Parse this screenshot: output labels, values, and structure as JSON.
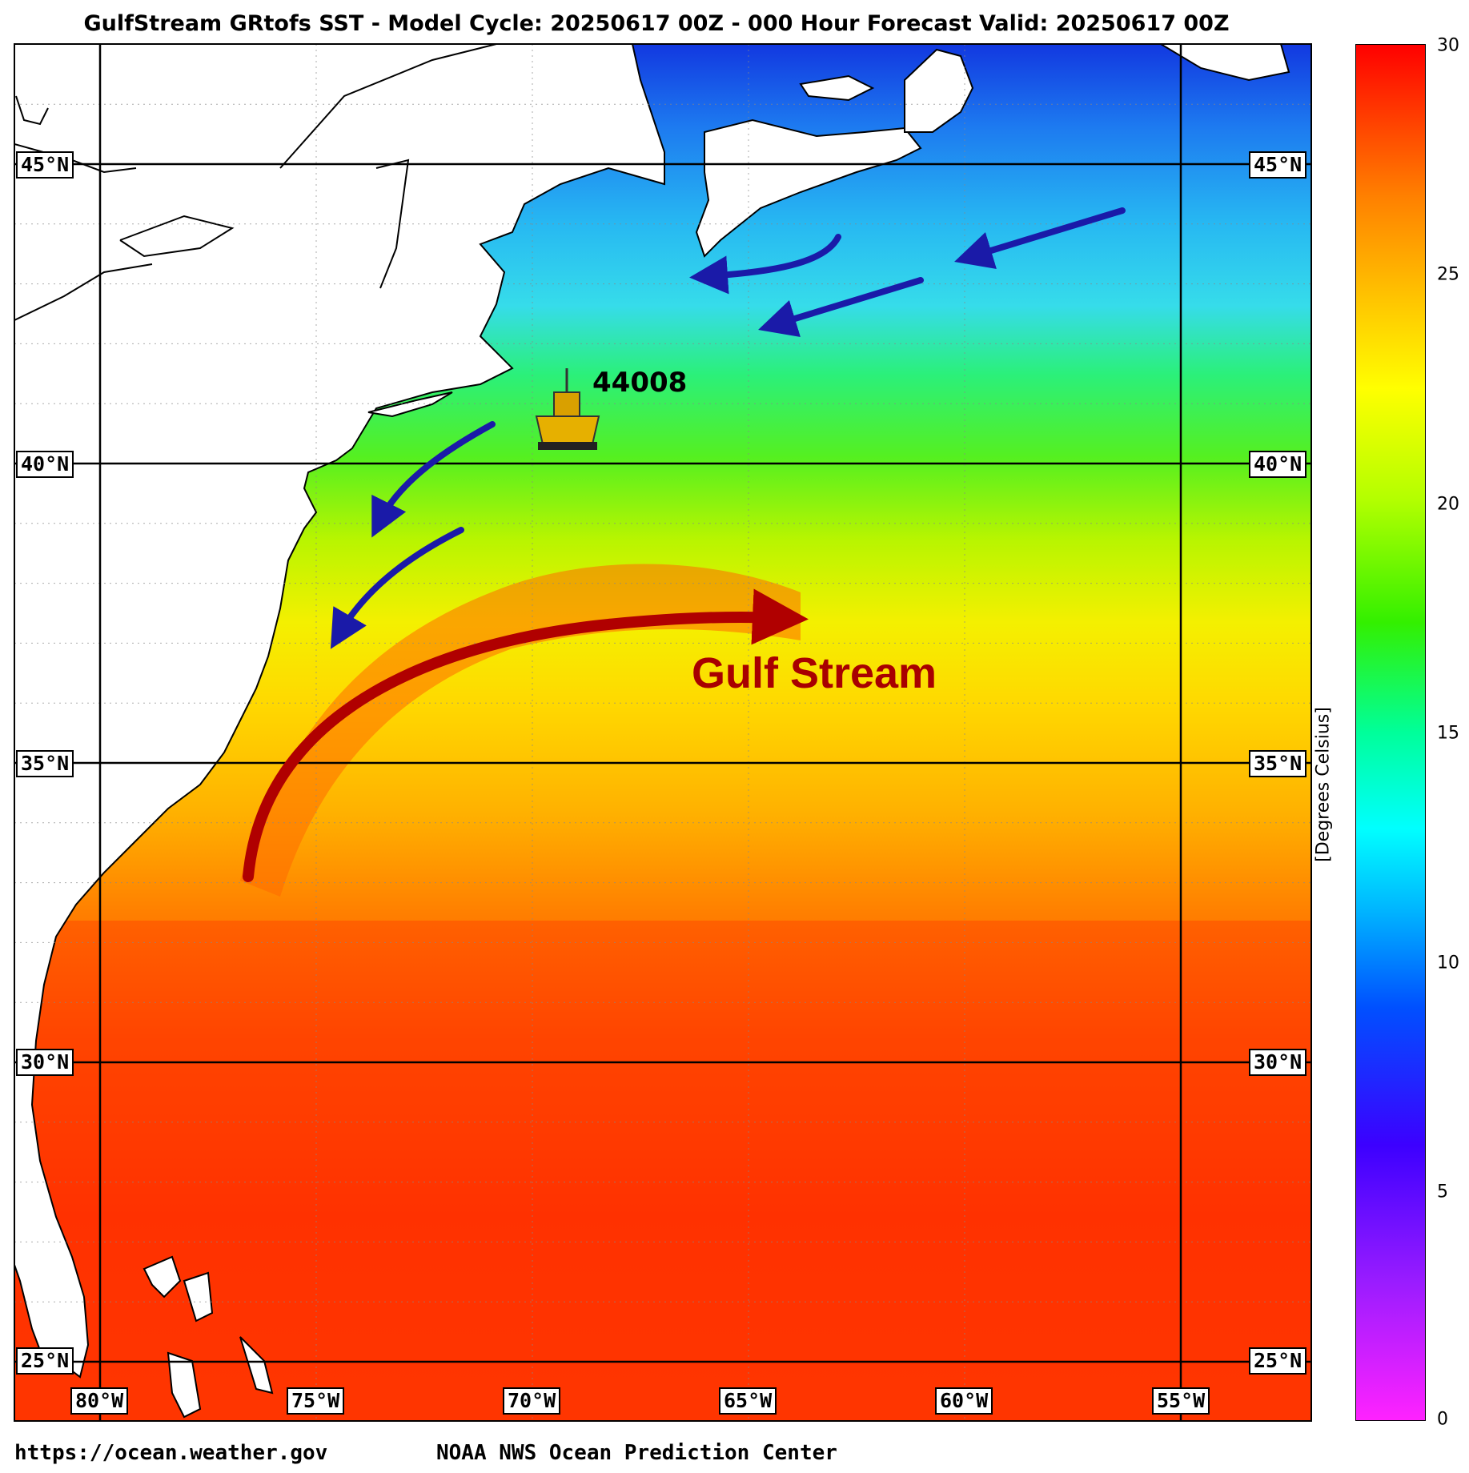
{
  "title": "GulfStream GRtofs SST - Model Cycle: 20250617 00Z - 000 Hour Forecast Valid: 20250617 00Z",
  "footer": {
    "url": "https://ocean.weather.gov",
    "agency": "NOAA NWS Ocean Prediction Center"
  },
  "colorbar": {
    "label": "[Degrees Celsius]",
    "ticks": [
      "30",
      "25",
      "20",
      "15",
      "10",
      "5",
      "0"
    ]
  },
  "lat_labels": [
    "45°N",
    "40°N",
    "35°N",
    "30°N",
    "25°N"
  ],
  "lon_labels": [
    "80°W",
    "75°W",
    "70°W",
    "65°W",
    "60°W",
    "55°W"
  ],
  "annotations": {
    "buoy_id": "44008",
    "current_label": "Gulf Stream"
  },
  "colors": {
    "arrow_blue": "#1a1aa8",
    "arrow_red": "#b00000",
    "label_red": "#a80000"
  }
}
